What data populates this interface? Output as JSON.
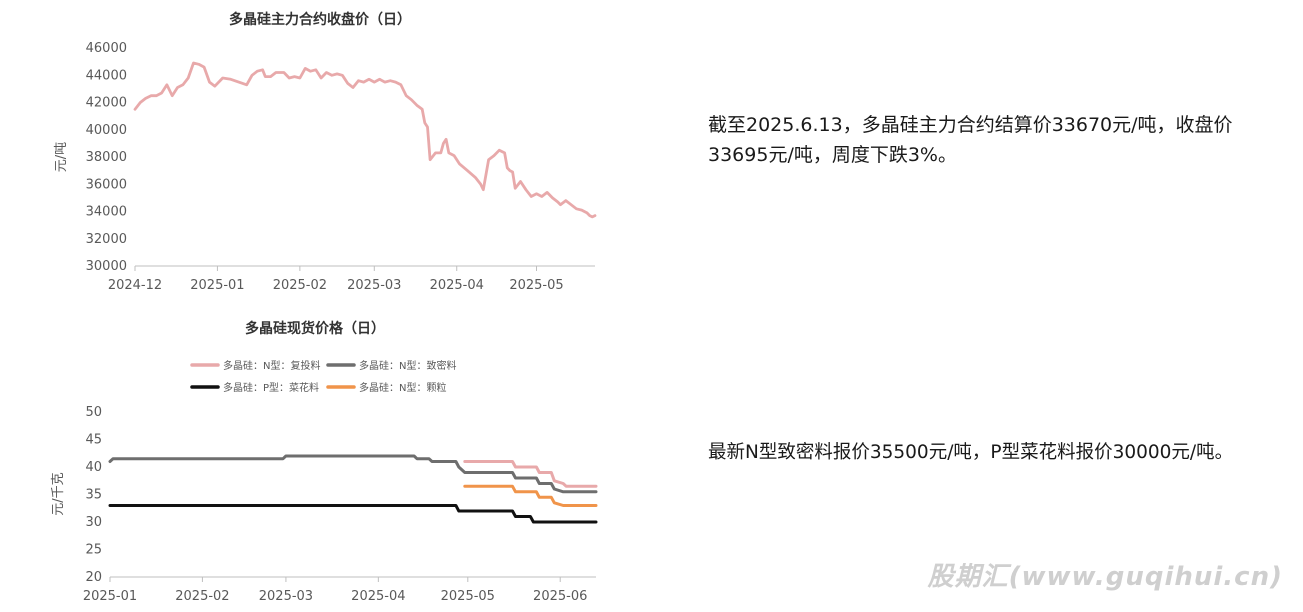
{
  "chart_data": [
    {
      "type": "line",
      "title": "多晶硅主力合约收盘价（日）",
      "ylabel": "元/吨",
      "ylim": [
        30000,
        46000
      ],
      "yticks": [
        "30000",
        "32000",
        "34000",
        "36000",
        "38000",
        "40000",
        "42000",
        "44000",
        "46000"
      ],
      "xlim": [
        "2024-12-01",
        "2025-05-23"
      ],
      "xticks": [
        {
          "date": "2024-12-01",
          "label": "2024-12"
        },
        {
          "date": "2025-01-01",
          "label": "2025-01"
        },
        {
          "date": "2025-02-01",
          "label": "2025-02"
        },
        {
          "date": "2025-03-01",
          "label": "2025-03"
        },
        {
          "date": "2025-04-01",
          "label": "2025-04"
        },
        {
          "date": "2025-05-01",
          "label": "2025-05"
        }
      ],
      "grid": false,
      "series": [
        {
          "color": "#e8a9aa",
          "points": [
            [
              "2024-12-01",
              41500
            ],
            [
              "2024-12-03",
              42000
            ],
            [
              "2024-12-05",
              42300
            ],
            [
              "2024-12-07",
              42500
            ],
            [
              "2024-12-09",
              42500
            ],
            [
              "2024-12-11",
              42700
            ],
            [
              "2024-12-13",
              43300
            ],
            [
              "2024-12-15",
              42500
            ],
            [
              "2024-12-17",
              43100
            ],
            [
              "2024-12-19",
              43300
            ],
            [
              "2024-12-21",
              43800
            ],
            [
              "2024-12-23",
              44900
            ],
            [
              "2024-12-25",
              44800
            ],
            [
              "2024-12-27",
              44600
            ],
            [
              "2024-12-29",
              43500
            ],
            [
              "2024-12-31",
              43200
            ],
            [
              "2025-01-03",
              43800
            ],
            [
              "2025-01-06",
              43700
            ],
            [
              "2025-01-09",
              43500
            ],
            [
              "2025-01-12",
              43300
            ],
            [
              "2025-01-14",
              44000
            ],
            [
              "2025-01-16",
              44300
            ],
            [
              "2025-01-18",
              44400
            ],
            [
              "2025-01-19",
              43900
            ],
            [
              "2025-01-21",
              43900
            ],
            [
              "2025-01-23",
              44200
            ],
            [
              "2025-01-26",
              44200
            ],
            [
              "2025-01-28",
              43800
            ],
            [
              "2025-01-30",
              43900
            ],
            [
              "2025-02-01",
              43800
            ],
            [
              "2025-02-03",
              44500
            ],
            [
              "2025-02-05",
              44300
            ],
            [
              "2025-02-07",
              44400
            ],
            [
              "2025-02-09",
              43800
            ],
            [
              "2025-02-11",
              44200
            ],
            [
              "2025-02-13",
              44000
            ],
            [
              "2025-02-15",
              44100
            ],
            [
              "2025-02-17",
              44000
            ],
            [
              "2025-02-19",
              43400
            ],
            [
              "2025-02-21",
              43100
            ],
            [
              "2025-02-23",
              43600
            ],
            [
              "2025-02-25",
              43500
            ],
            [
              "2025-02-27",
              43700
            ],
            [
              "2025-03-01",
              43500
            ],
            [
              "2025-03-03",
              43700
            ],
            [
              "2025-03-05",
              43500
            ],
            [
              "2025-03-07",
              43600
            ],
            [
              "2025-03-09",
              43500
            ],
            [
              "2025-03-11",
              43300
            ],
            [
              "2025-03-13",
              42500
            ],
            [
              "2025-03-15",
              42200
            ],
            [
              "2025-03-17",
              41800
            ],
            [
              "2025-03-19",
              41500
            ],
            [
              "2025-03-20",
              40500
            ],
            [
              "2025-03-21",
              40200
            ],
            [
              "2025-03-22",
              37800
            ],
            [
              "2025-03-24",
              38300
            ],
            [
              "2025-03-26",
              38300
            ],
            [
              "2025-03-27",
              39000
            ],
            [
              "2025-03-28",
              39300
            ],
            [
              "2025-03-29",
              38300
            ],
            [
              "2025-03-31",
              38100
            ],
            [
              "2025-04-02",
              37500
            ],
            [
              "2025-04-05",
              37000
            ],
            [
              "2025-04-08",
              36500
            ],
            [
              "2025-04-10",
              36000
            ],
            [
              "2025-04-11",
              35600
            ],
            [
              "2025-04-13",
              37800
            ],
            [
              "2025-04-15",
              38100
            ],
            [
              "2025-04-17",
              38500
            ],
            [
              "2025-04-19",
              38300
            ],
            [
              "2025-04-20",
              37200
            ],
            [
              "2025-04-21",
              37000
            ],
            [
              "2025-04-22",
              36900
            ],
            [
              "2025-04-23",
              35700
            ],
            [
              "2025-04-25",
              36200
            ],
            [
              "2025-04-27",
              35600
            ],
            [
              "2025-04-29",
              35100
            ],
            [
              "2025-05-01",
              35300
            ],
            [
              "2025-05-03",
              35100
            ],
            [
              "2025-05-05",
              35400
            ],
            [
              "2025-05-07",
              35000
            ],
            [
              "2025-05-09",
              34700
            ],
            [
              "2025-05-10",
              34500
            ],
            [
              "2025-05-12",
              34800
            ],
            [
              "2025-05-14",
              34500
            ],
            [
              "2025-05-16",
              34200
            ],
            [
              "2025-05-18",
              34100
            ],
            [
              "2025-05-20",
              33900
            ],
            [
              "2025-05-21",
              33700
            ],
            [
              "2025-05-22",
              33600
            ],
            [
              "2025-05-23",
              33700
            ]
          ]
        }
      ]
    },
    {
      "type": "line",
      "title": "多晶硅现货价格（日）",
      "ylabel": "元/千克",
      "ylim": [
        20,
        50
      ],
      "yticks": [
        "20",
        "25",
        "30",
        "35",
        "40",
        "45",
        "50"
      ],
      "xlim": [
        "2025-01-01",
        "2025-06-13"
      ],
      "xticks": [
        {
          "date": "2025-01-01",
          "label": "2025-01"
        },
        {
          "date": "2025-02-01",
          "label": "2025-02"
        },
        {
          "date": "2025-03-01",
          "label": "2025-03"
        },
        {
          "date": "2025-04-01",
          "label": "2025-04"
        },
        {
          "date": "2025-05-01",
          "label": "2025-05"
        },
        {
          "date": "2025-06-01",
          "label": "2025-06"
        }
      ],
      "grid": false,
      "legend_position": "top",
      "series": [
        {
          "name": "多晶硅：N型：复投料",
          "color": "#e8a9aa",
          "points": [
            [
              "2025-04-30",
              41
            ],
            [
              "2025-05-16",
              41
            ],
            [
              "2025-05-17",
              40
            ],
            [
              "2025-05-24",
              40
            ],
            [
              "2025-05-25",
              39
            ],
            [
              "2025-05-29",
              39
            ],
            [
              "2025-05-30",
              37.5
            ],
            [
              "2025-06-02",
              37
            ],
            [
              "2025-06-03",
              36.5
            ],
            [
              "2025-06-13",
              36.5
            ]
          ]
        },
        {
          "name": "多晶硅：N型：致密料",
          "color": "#6e6e6e",
          "points": [
            [
              "2025-01-01",
              41
            ],
            [
              "2025-01-02",
              41.5
            ],
            [
              "2025-02-28",
              41.5
            ],
            [
              "2025-03-01",
              42
            ],
            [
              "2025-04-13",
              42
            ],
            [
              "2025-04-14",
              41.5
            ],
            [
              "2025-04-18",
              41.5
            ],
            [
              "2025-04-19",
              41
            ],
            [
              "2025-04-27",
              41
            ],
            [
              "2025-04-28",
              40
            ],
            [
              "2025-04-30",
              39
            ],
            [
              "2025-05-16",
              39
            ],
            [
              "2025-05-17",
              38
            ],
            [
              "2025-05-24",
              38
            ],
            [
              "2025-05-25",
              37
            ],
            [
              "2025-05-29",
              37
            ],
            [
              "2025-05-30",
              36
            ],
            [
              "2025-06-02",
              35.5
            ],
            [
              "2025-06-13",
              35.5
            ]
          ]
        },
        {
          "name": "多晶硅：P型：菜花料",
          "color": "#111111",
          "points": [
            [
              "2025-01-01",
              33
            ],
            [
              "2025-04-27",
              33
            ],
            [
              "2025-04-28",
              32
            ],
            [
              "2025-05-16",
              32
            ],
            [
              "2025-05-17",
              31
            ],
            [
              "2025-05-22",
              31
            ],
            [
              "2025-05-23",
              30
            ],
            [
              "2025-06-13",
              30
            ]
          ]
        },
        {
          "name": "多晶硅：N型：颗粒",
          "color": "#f0944a",
          "points": [
            [
              "2025-04-30",
              36.5
            ],
            [
              "2025-05-16",
              36.5
            ],
            [
              "2025-05-17",
              35.5
            ],
            [
              "2025-05-24",
              35.5
            ],
            [
              "2025-05-25",
              34.5
            ],
            [
              "2025-05-29",
              34.5
            ],
            [
              "2025-05-30",
              33.5
            ],
            [
              "2025-06-02",
              33
            ],
            [
              "2025-06-13",
              33
            ]
          ]
        }
      ]
    }
  ],
  "notes": {
    "futures": "截至2025.6.13，多晶硅主力合约结算价33670元/吨，收盘价33695元/吨，周度下跌3%。",
    "spot": "最新N型致密料报价35500元/吨，P型菜花料报价30000元/吨。"
  },
  "watermark": "股期汇(www.guqihui.cn)"
}
